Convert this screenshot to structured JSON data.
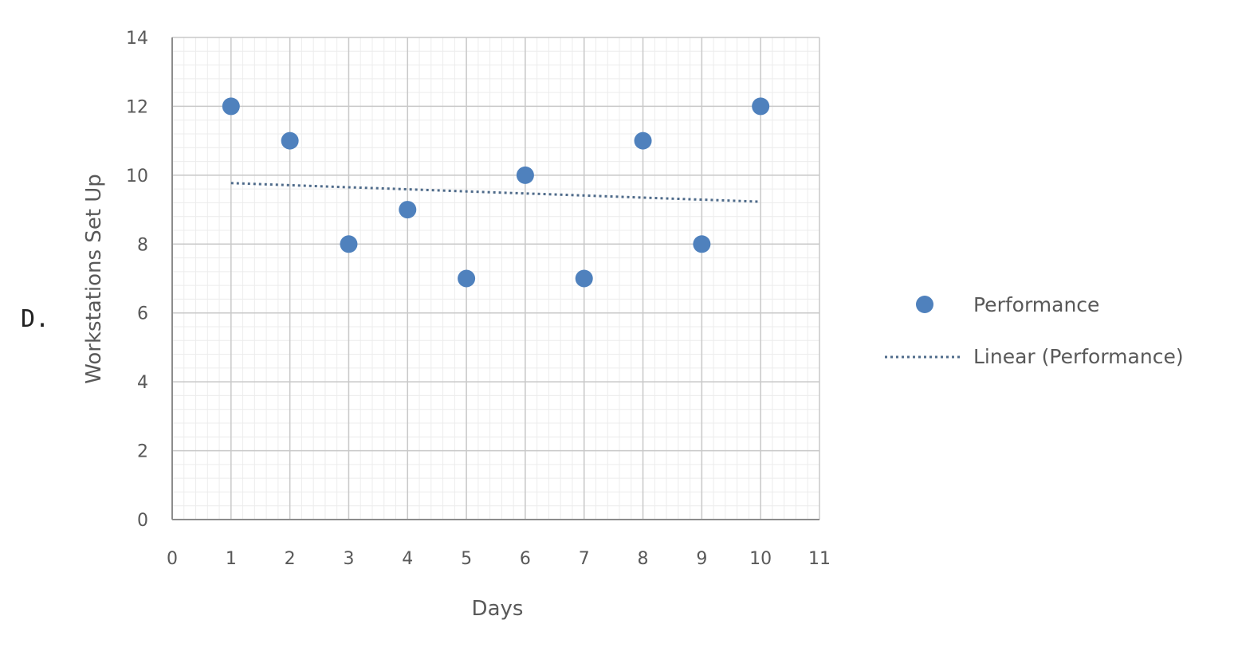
{
  "option_label": "D.",
  "chart_data": {
    "type": "scatter",
    "title": "",
    "xlabel": "Days",
    "ylabel": "Workstations Set Up",
    "xlim": [
      0,
      11
    ],
    "ylim": [
      0,
      14
    ],
    "x_ticks": [
      "0",
      "1",
      "2",
      "3",
      "4",
      "5",
      "6",
      "7",
      "8",
      "9",
      "10",
      "11"
    ],
    "y_ticks": [
      "0",
      "2",
      "4",
      "6",
      "8",
      "10",
      "12",
      "14"
    ],
    "grid": true,
    "minor_grid": true,
    "legend_position": "right",
    "series": [
      {
        "name": "Performance",
        "kind": "points",
        "color": "#4f81bd",
        "x": [
          1,
          2,
          3,
          4,
          5,
          6,
          7,
          8,
          9,
          10
        ],
        "y": [
          12,
          11,
          8,
          9,
          7,
          10,
          7,
          11,
          8,
          12
        ]
      },
      {
        "name": "Linear (Performance)",
        "kind": "trendline",
        "color": "#4f6b8a",
        "style": "dotted",
        "x": [
          1,
          10
        ],
        "y": [
          9.77,
          9.23
        ]
      }
    ]
  }
}
